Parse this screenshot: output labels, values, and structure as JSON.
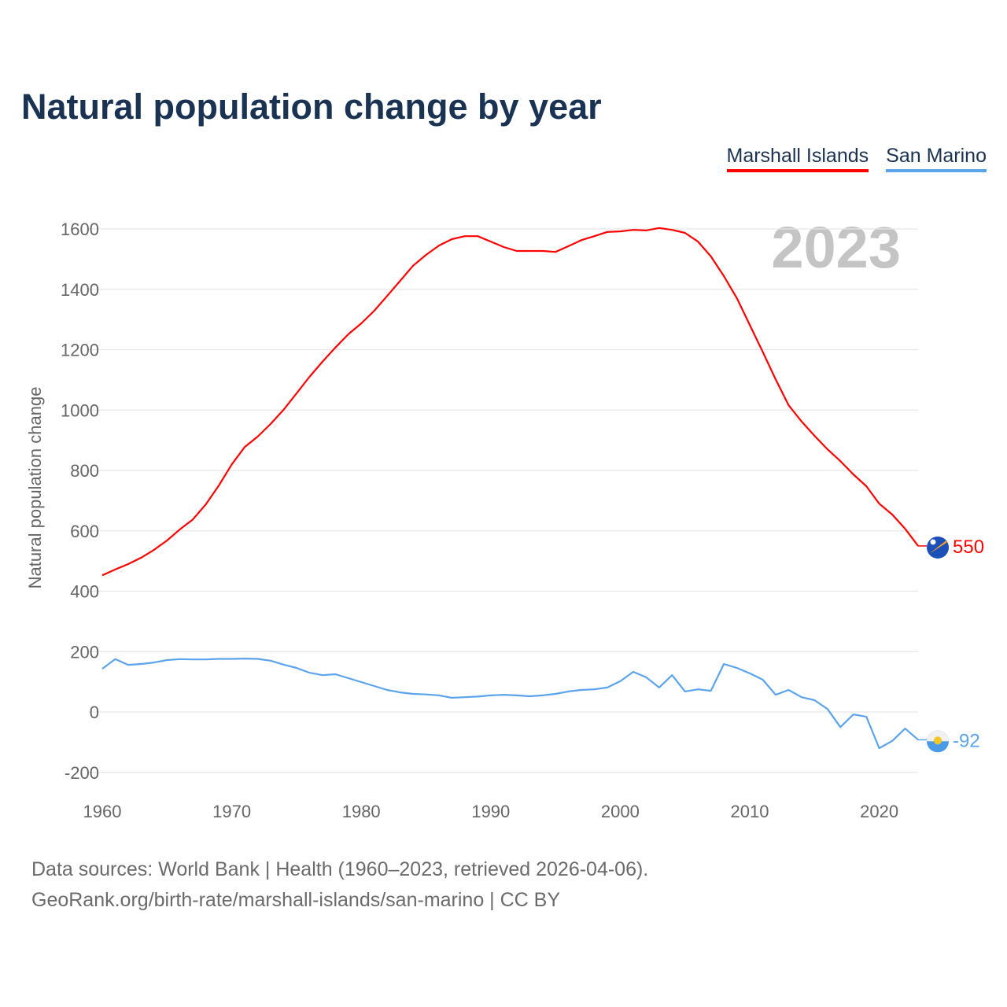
{
  "title": "Natural population change by year",
  "legend": [
    {
      "name": "Marshall Islands",
      "color": "#ff0000"
    },
    {
      "name": "San Marino",
      "color": "#5ba4ec"
    }
  ],
  "footer": {
    "line1": "Data sources: World Bank | Health (1960–2023, retrieved 2026-04-06).",
    "line2": "GeoRank.org/birth-rate/marshall-islands/san-marino | CC BY"
  },
  "chart_data": {
    "type": "line",
    "title": "Natural population change by year",
    "xlabel": "",
    "ylabel": "Natural population change",
    "year_watermark": "2023",
    "xlim": [
      1960,
      2023
    ],
    "ylim": [
      -250,
      1700
    ],
    "x_ticks": [
      "1960",
      "1970",
      "1980",
      "1990",
      "2000",
      "2010",
      "2020"
    ],
    "y_ticks": [
      "-200",
      "0",
      "200",
      "400",
      "600",
      "800",
      "1000",
      "1200",
      "1400",
      "1600"
    ],
    "grid": true,
    "legend_position": "top-right",
    "x": [
      1960,
      1961,
      1962,
      1963,
      1964,
      1965,
      1966,
      1967,
      1968,
      1969,
      1970,
      1971,
      1972,
      1973,
      1974,
      1975,
      1976,
      1977,
      1978,
      1979,
      1980,
      1981,
      1982,
      1983,
      1984,
      1985,
      1986,
      1987,
      1988,
      1989,
      1990,
      1991,
      1992,
      1993,
      1994,
      1995,
      1996,
      1997,
      1998,
      1999,
      2000,
      2001,
      2002,
      2003,
      2004,
      2005,
      2006,
      2007,
      2008,
      2009,
      2010,
      2011,
      2012,
      2013,
      2014,
      2015,
      2016,
      2017,
      2018,
      2019,
      2020,
      2021,
      2022,
      2023
    ],
    "series": [
      {
        "name": "Marshall Islands",
        "color": "#ff0000",
        "end_label": "550",
        "values": [
          453,
          472,
          490,
          511,
          537,
          568,
          605,
          638,
          688,
          750,
          820,
          878,
          912,
          954,
          1001,
          1055,
          1110,
          1160,
          1207,
          1251,
          1287,
          1329,
          1378,
          1428,
          1478,
          1514,
          1545,
          1566,
          1576,
          1576,
          1558,
          1540,
          1527,
          1527,
          1527,
          1524,
          1543,
          1563,
          1576,
          1590,
          1592,
          1597,
          1595,
          1603,
          1597,
          1587,
          1558,
          1509,
          1444,
          1371,
          1282,
          1193,
          1102,
          1016,
          962,
          915,
          870,
          831,
          787,
          748,
          690,
          654,
          607,
          550
        ]
      },
      {
        "name": "San Marino",
        "color": "#5ba4ec",
        "end_label": "-92",
        "values": [
          143,
          175,
          156,
          159,
          164,
          172,
          175,
          174,
          174,
          176,
          176,
          177,
          176,
          170,
          157,
          146,
          130,
          122,
          125,
          112,
          99,
          86,
          73,
          65,
          60,
          58,
          55,
          47,
          49,
          51,
          55,
          57,
          55,
          52,
          55,
          60,
          68,
          73,
          75,
          81,
          102,
          133,
          115,
          81,
          122,
          68,
          75,
          70,
          159,
          146,
          128,
          107,
          57,
          73,
          49,
          39,
          10,
          -50,
          -8,
          -16,
          -120,
          -96,
          -55,
          -92
        ]
      }
    ]
  }
}
